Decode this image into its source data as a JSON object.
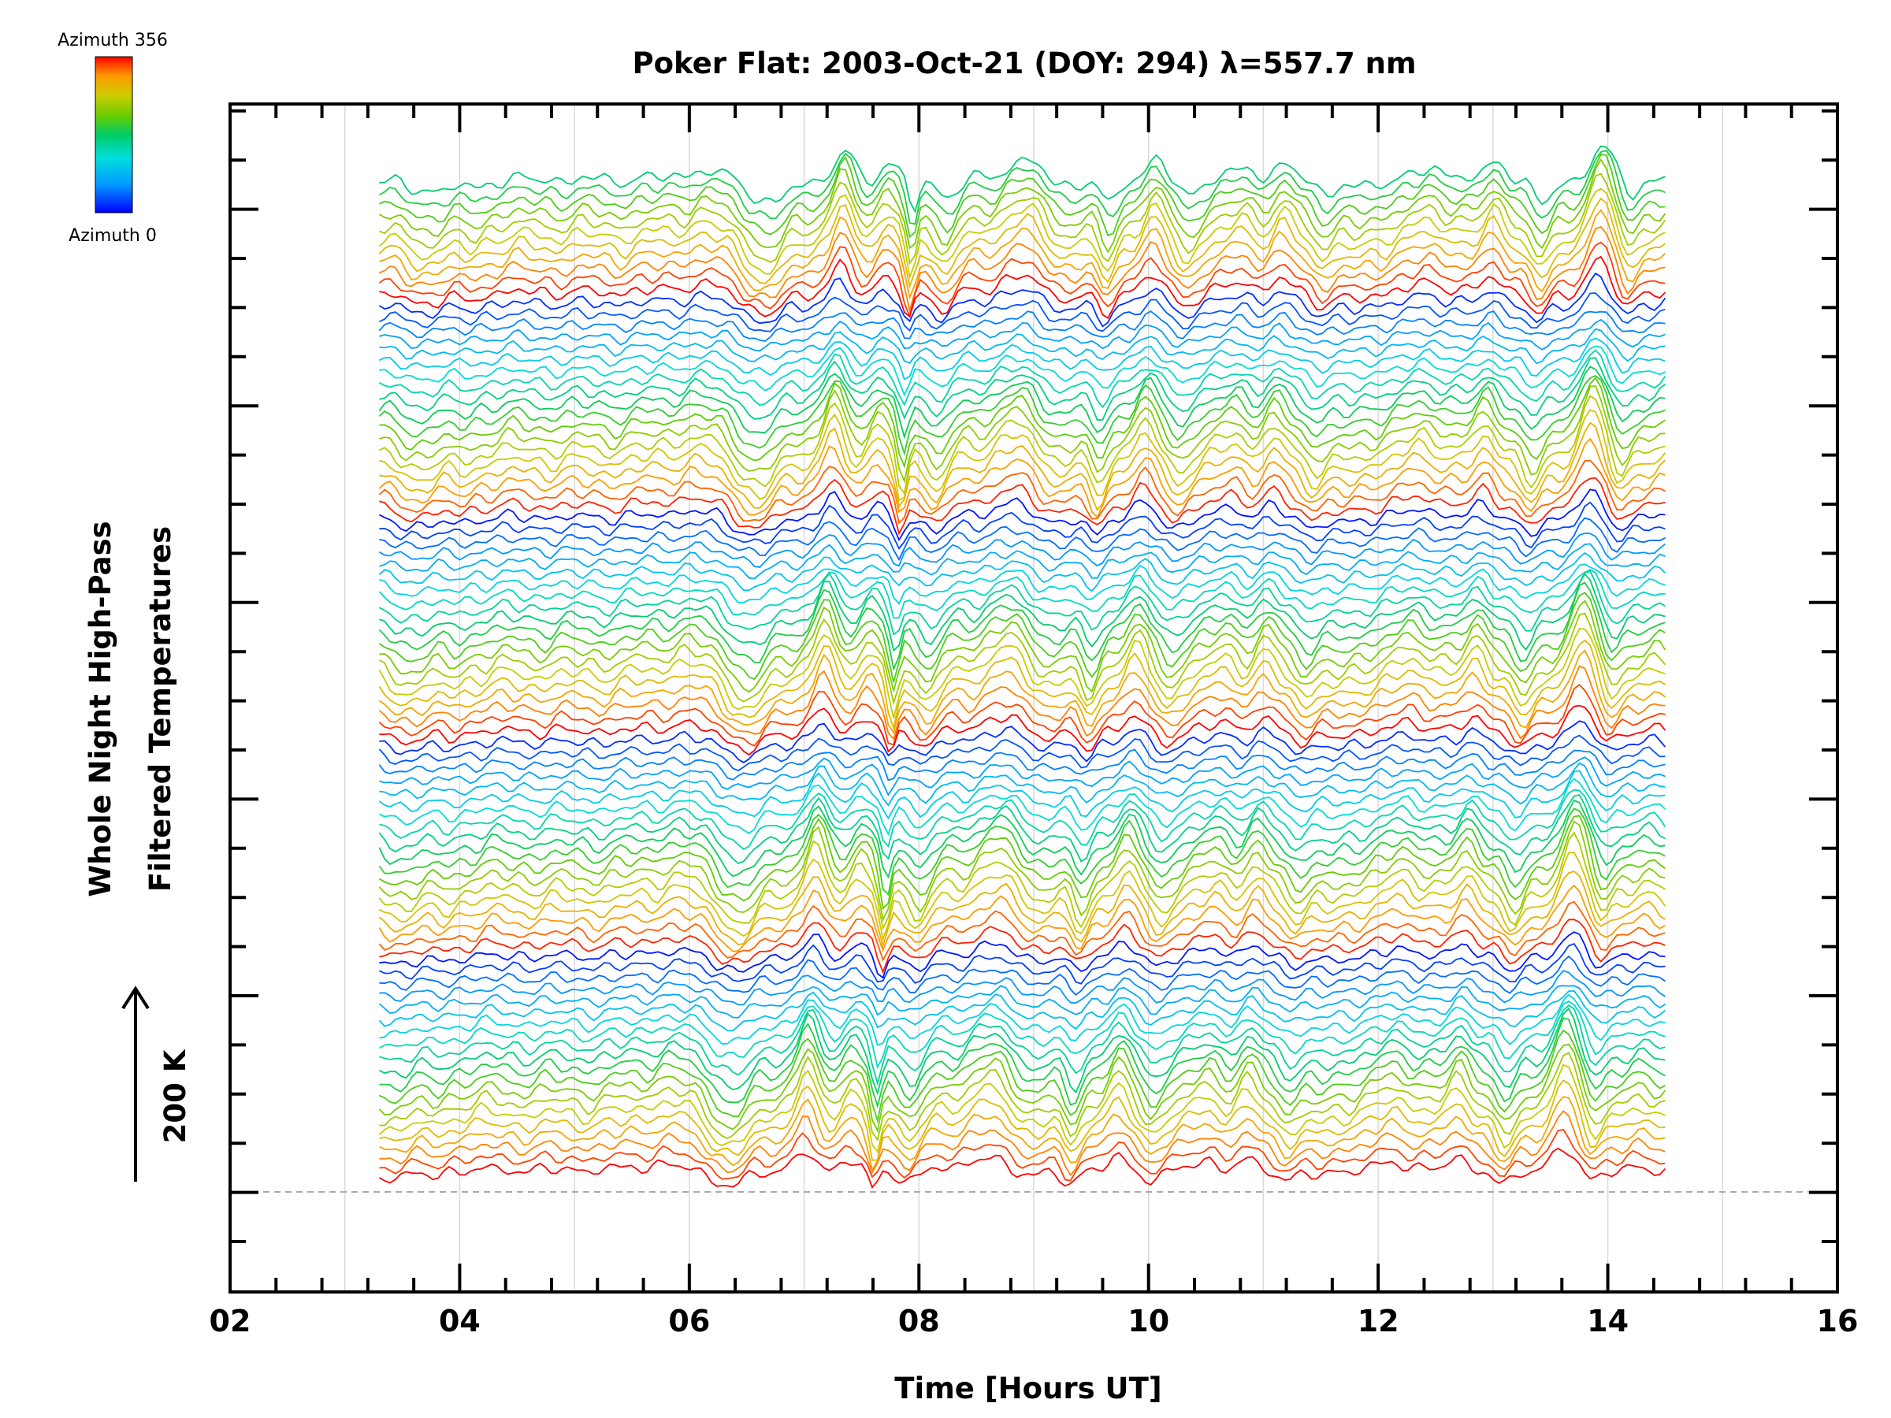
{
  "chart_data": {
    "type": "line",
    "title": "Poker Flat: 2003-Oct-21 (DOY: 294) λ=557.7 nm",
    "xlabel": "Time [Hours UT]",
    "ylabel_line1": "Whole Night High-Pass",
    "ylabel_line2": "Filtered Temperatures",
    "scale_label": "200 K",
    "xlim": [
      2,
      16
    ],
    "x_ticks": [
      "02",
      "04",
      "06",
      "08",
      "10",
      "12",
      "14",
      "16"
    ],
    "x_data_range": [
      3.3,
      14.5
    ],
    "colorbar": {
      "top_label": "Azimuth 356",
      "bottom_label": "Azimuth 0",
      "min": 0,
      "max": 356
    },
    "series_count": 89,
    "grid": true,
    "colors": {
      "axis": "#000000",
      "grid": "#d9d9d9",
      "baseline": "#aaaaaa",
      "rainbow": [
        "#0000ff",
        "#0099ff",
        "#00dddd",
        "#00cc66",
        "#66cc00",
        "#cccc00",
        "#ff9900",
        "#ff0000"
      ]
    }
  }
}
